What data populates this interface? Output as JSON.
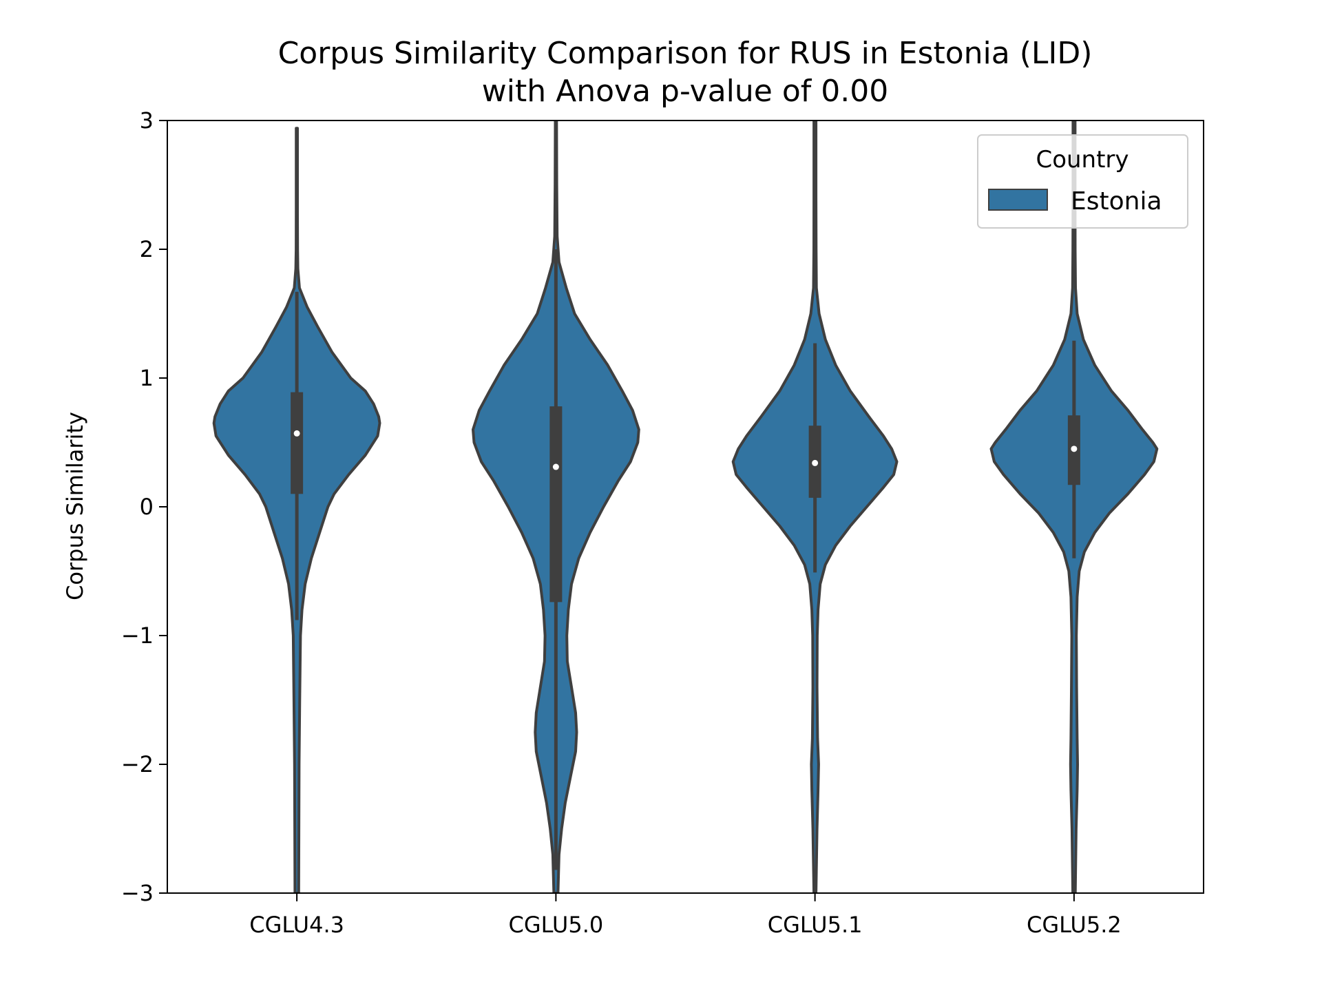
{
  "chart_data": {
    "type": "violin",
    "title": "Corpus Similarity Comparison for RUS in Estonia (LID)",
    "subtitle": "with Anova p-value of 0.00",
    "xlabel": "",
    "ylabel": "Corpus Similarity",
    "ylim": [
      -3,
      3
    ],
    "yticks": [
      -3,
      -2,
      -1,
      0,
      1,
      2,
      3
    ],
    "ytick_labels": [
      "−3",
      "−2",
      "−1",
      "0",
      "1",
      "2",
      "3"
    ],
    "categories": [
      "CGLU4.3",
      "CGLU5.0",
      "CGLU5.1",
      "CGLU5.2"
    ],
    "grid": false,
    "legend": {
      "title": "Country",
      "entries": [
        "Estonia"
      ],
      "placement": "upper right"
    },
    "colors": {
      "fill": "#3274a1",
      "edge": "#3f3f3f",
      "median": "#ffffff",
      "axes": "#000000"
    },
    "series": [
      {
        "name": "Estonia",
        "violins": [
          {
            "category": "CGLU4.3",
            "median": 0.57,
            "q1": 0.1,
            "q3": 0.89,
            "whisker_low": -0.88,
            "whisker_high": 1.67,
            "extent": [
              -3,
              2.94
            ],
            "profile": [
              [
                2.94,
                0.006
              ],
              [
                2.3,
                0.006
              ],
              [
                2.0,
                0.007
              ],
              [
                1.85,
                0.01
              ],
              [
                1.7,
                0.025
              ],
              [
                1.55,
                0.1
              ],
              [
                1.4,
                0.2
              ],
              [
                1.2,
                0.34
              ],
              [
                1.0,
                0.52
              ],
              [
                0.9,
                0.66
              ],
              [
                0.8,
                0.74
              ],
              [
                0.7,
                0.79
              ],
              [
                0.65,
                0.8
              ],
              [
                0.55,
                0.78
              ],
              [
                0.4,
                0.66
              ],
              [
                0.25,
                0.5
              ],
              [
                0.1,
                0.36
              ],
              [
                0.0,
                0.3
              ],
              [
                -0.2,
                0.22
              ],
              [
                -0.4,
                0.14
              ],
              [
                -0.6,
                0.08
              ],
              [
                -0.8,
                0.05
              ],
              [
                -1.0,
                0.035
              ],
              [
                -1.5,
                0.028
              ],
              [
                -2.0,
                0.022
              ],
              [
                -2.5,
                0.02
              ],
              [
                -3.0,
                0.018
              ]
            ]
          },
          {
            "category": "CGLU5.0",
            "median": 0.31,
            "q1": -0.74,
            "q3": 0.78,
            "whisker_low": -2.82,
            "whisker_high": 2.0,
            "extent": [
              -3,
              3
            ],
            "profile": [
              [
                3.0,
                0.006
              ],
              [
                2.5,
                0.008
              ],
              [
                2.1,
                0.012
              ],
              [
                1.9,
                0.03
              ],
              [
                1.7,
                0.1
              ],
              [
                1.5,
                0.18
              ],
              [
                1.3,
                0.33
              ],
              [
                1.1,
                0.5
              ],
              [
                0.9,
                0.64
              ],
              [
                0.75,
                0.74
              ],
              [
                0.6,
                0.8
              ],
              [
                0.5,
                0.79
              ],
              [
                0.35,
                0.72
              ],
              [
                0.2,
                0.6
              ],
              [
                0.0,
                0.46
              ],
              [
                -0.2,
                0.33
              ],
              [
                -0.4,
                0.22
              ],
              [
                -0.6,
                0.15
              ],
              [
                -0.8,
                0.12
              ],
              [
                -1.0,
                0.105
              ],
              [
                -1.2,
                0.11
              ],
              [
                -1.4,
                0.15
              ],
              [
                -1.6,
                0.19
              ],
              [
                -1.75,
                0.2
              ],
              [
                -1.9,
                0.19
              ],
              [
                -2.1,
                0.14
              ],
              [
                -2.3,
                0.09
              ],
              [
                -2.5,
                0.055
              ],
              [
                -2.7,
                0.03
              ],
              [
                -3.0,
                0.02
              ]
            ]
          },
          {
            "category": "CGLU5.1",
            "median": 0.34,
            "q1": 0.07,
            "q3": 0.63,
            "whisker_low": -0.51,
            "whisker_high": 1.27,
            "extent": [
              -3,
              3
            ],
            "profile": [
              [
                3.0,
                0.01
              ],
              [
                2.4,
                0.01
              ],
              [
                2.0,
                0.011
              ],
              [
                1.7,
                0.014
              ],
              [
                1.5,
                0.04
              ],
              [
                1.3,
                0.1
              ],
              [
                1.1,
                0.2
              ],
              [
                0.9,
                0.34
              ],
              [
                0.7,
                0.52
              ],
              [
                0.55,
                0.66
              ],
              [
                0.45,
                0.74
              ],
              [
                0.35,
                0.79
              ],
              [
                0.25,
                0.76
              ],
              [
                0.15,
                0.66
              ],
              [
                0.0,
                0.5
              ],
              [
                -0.15,
                0.34
              ],
              [
                -0.3,
                0.2
              ],
              [
                -0.45,
                0.1
              ],
              [
                -0.6,
                0.05
              ],
              [
                -0.8,
                0.03
              ],
              [
                -1.0,
                0.022
              ],
              [
                -1.4,
                0.02
              ],
              [
                -1.8,
                0.025
              ],
              [
                -2.0,
                0.035
              ],
              [
                -2.2,
                0.03
              ],
              [
                -2.5,
                0.02
              ],
              [
                -3.0,
                0.01
              ]
            ]
          },
          {
            "category": "CGLU5.2",
            "median": 0.45,
            "q1": 0.17,
            "q3": 0.71,
            "whisker_low": -0.4,
            "whisker_high": 1.29,
            "extent": [
              -3,
              3
            ],
            "profile": [
              [
                3.0,
                0.01
              ],
              [
                2.4,
                0.01
              ],
              [
                2.0,
                0.011
              ],
              [
                1.7,
                0.014
              ],
              [
                1.5,
                0.03
              ],
              [
                1.3,
                0.09
              ],
              [
                1.1,
                0.2
              ],
              [
                0.9,
                0.36
              ],
              [
                0.75,
                0.52
              ],
              [
                0.6,
                0.66
              ],
              [
                0.5,
                0.76
              ],
              [
                0.45,
                0.8
              ],
              [
                0.35,
                0.77
              ],
              [
                0.25,
                0.68
              ],
              [
                0.1,
                0.52
              ],
              [
                -0.05,
                0.34
              ],
              [
                -0.2,
                0.2
              ],
              [
                -0.35,
                0.1
              ],
              [
                -0.5,
                0.05
              ],
              [
                -0.7,
                0.03
              ],
              [
                -1.0,
                0.022
              ],
              [
                -1.4,
                0.025
              ],
              [
                -1.8,
                0.03
              ],
              [
                -2.0,
                0.034
              ],
              [
                -2.2,
                0.03
              ],
              [
                -2.5,
                0.02
              ],
              [
                -3.0,
                0.012
              ]
            ]
          }
        ]
      }
    ]
  }
}
